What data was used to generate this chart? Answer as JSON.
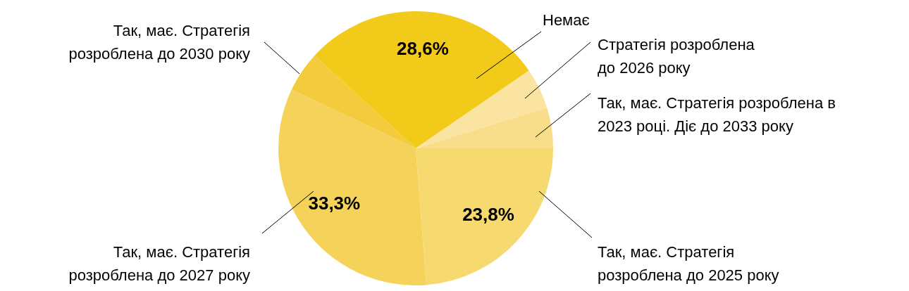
{
  "chart_data": {
    "type": "pie",
    "categories": [
      "Так, має. Стратегія розроблена до 2025 року",
      "Так, має. Стратегія розроблена до 2027 року",
      "Так, має. Стратегія розроблена до 2030 року",
      "Немає",
      "Стратегія розроблена до 2026 року",
      "Так, має. Стратегія розроблена в 2023 році. Діє до 2033 року"
    ],
    "values": [
      23.8,
      33.3,
      4.8,
      28.6,
      4.8,
      4.8
    ],
    "value_labels": [
      "23,8%",
      "33,3%",
      null,
      "28,6%",
      null,
      null
    ],
    "colors": [
      "#f6d96f",
      "#f5d35a",
      "#f3cb3c",
      "#f2ca19",
      "#fbe4a2",
      "#f8dd8a"
    ],
    "legend": false
  }
}
